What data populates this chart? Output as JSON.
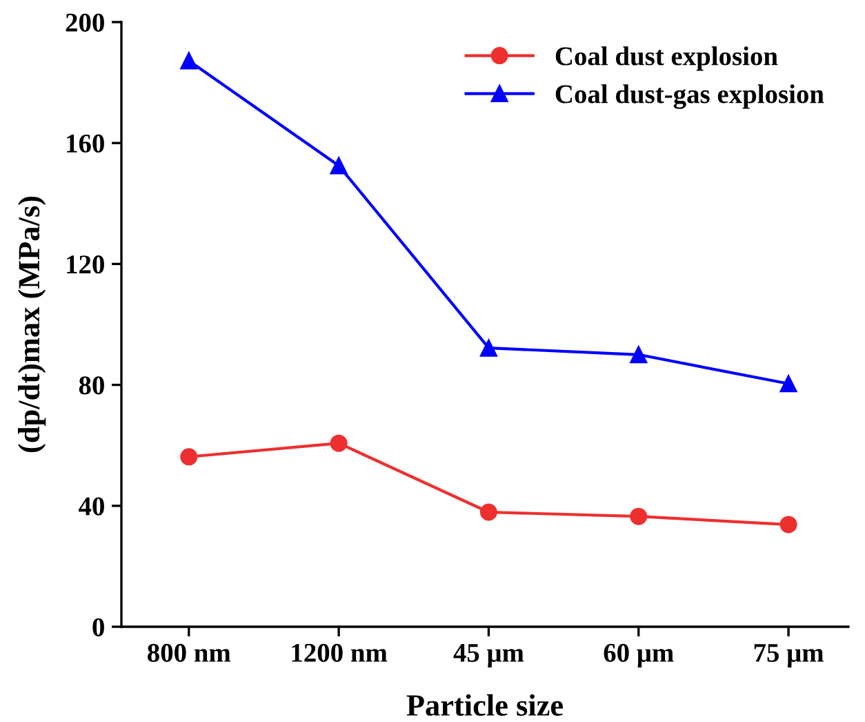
{
  "chart_data": {
    "type": "line",
    "xlabel": "Particle size",
    "ylabel": "(dp/dt)max (MPa/s)",
    "categories": [
      "800 nm",
      "1200 nm",
      "45 μm",
      "60 μm",
      "75 μm"
    ],
    "series": [
      {
        "name": "Coal dust explosion",
        "color": "#ee2f2f",
        "marker": "circle",
        "values": [
          56.2,
          60.7,
          37.9,
          36.5,
          33.8
        ]
      },
      {
        "name": "Coal dust-gas explosion",
        "color": "#0000ff",
        "marker": "triangle",
        "values": [
          187.2,
          152.5,
          92.2,
          90.0,
          80.4
        ]
      }
    ],
    "ylim": [
      0,
      200
    ],
    "yticks": [
      0,
      40,
      80,
      120,
      160,
      200
    ],
    "grid": false,
    "legend": "top right",
    "line_style": "solid"
  }
}
